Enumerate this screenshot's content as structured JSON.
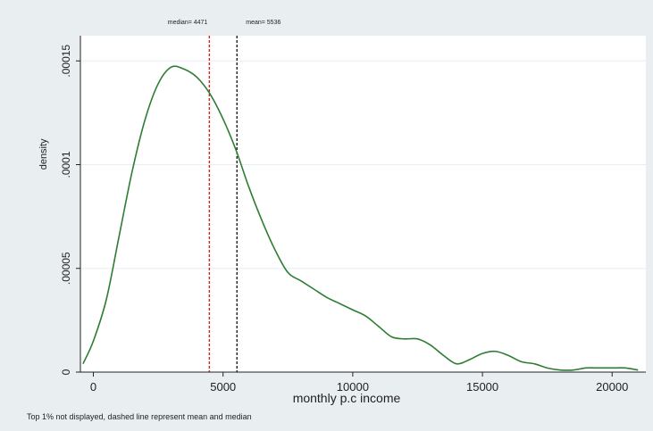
{
  "chart_data": {
    "type": "line",
    "title": "",
    "xlabel": "monthly p.c income",
    "ylabel": "density",
    "xlim": [
      -500,
      21300
    ],
    "ylim": [
      0,
      0.00016
    ],
    "x_ticks": [
      0,
      5000,
      10000,
      15000,
      20000
    ],
    "x_tick_labels": [
      "0",
      "5000",
      "10000",
      "15000",
      "20000"
    ],
    "y_ticks": [
      0,
      5e-05,
      0.0001,
      0.00015
    ],
    "y_tick_labels": [
      "0",
      ".00005",
      ".0001",
      ".00015"
    ],
    "grid": "horizontal",
    "line_color": "#2e7d32",
    "series": [
      {
        "x": [
          -400,
          0,
          500,
          1000,
          1500,
          2000,
          2500,
          3000,
          3500,
          4000,
          4500,
          5000,
          5500,
          6000,
          6500,
          7000,
          7500,
          8000,
          8500,
          9000,
          9500,
          10000,
          10500,
          11000,
          11500,
          12000,
          12500,
          13000,
          13500,
          14000,
          14500,
          15000,
          15500,
          16000,
          16500,
          17000,
          17500,
          18000,
          18500,
          19000,
          19500,
          20000,
          20500,
          21000
        ],
        "y": [
          4e-06,
          1.5e-05,
          3.5e-05,
          6.6e-05,
          9.7e-05,
          0.000122,
          0.000139,
          0.000147,
          0.000146,
          0.000142,
          0.000134,
          0.000122,
          0.000107,
          8.9e-05,
          7.3e-05,
          5.9e-05,
          4.8e-05,
          4.4e-05,
          4e-05,
          3.6e-05,
          3.3e-05,
          3e-05,
          2.7e-05,
          2.2e-05,
          1.7e-05,
          1.6e-05,
          1.6e-05,
          1.3e-05,
          8e-06,
          4e-06,
          6e-06,
          9e-06,
          1e-05,
          8e-06,
          5e-06,
          4e-06,
          2e-06,
          1e-06,
          1e-06,
          2e-06,
          2e-06,
          2e-06,
          2e-06,
          1e-06
        ]
      }
    ],
    "reference_lines": [
      {
        "label": "median= 4471",
        "x": 4471,
        "color": "#e02020"
      },
      {
        "label": "mean= 5536",
        "x": 5536,
        "color": "#222222"
      }
    ],
    "note": "Top 1% not displayed, dashed line represent mean and median"
  }
}
